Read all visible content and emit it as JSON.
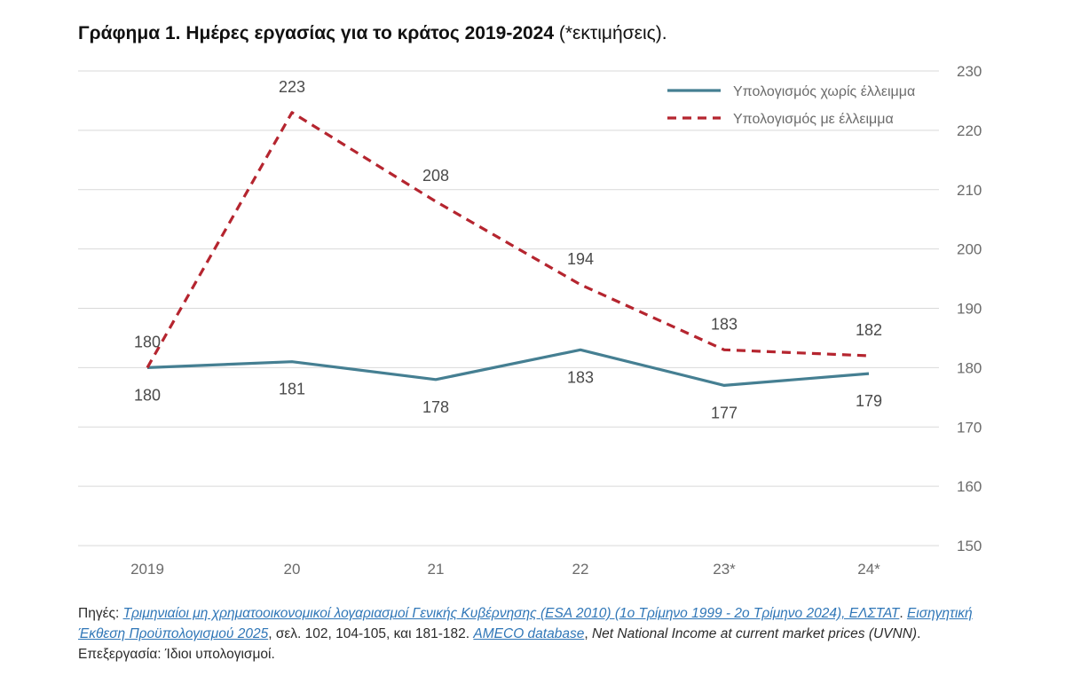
{
  "title": {
    "main": "Γράφημα 1. Ημέρες εργασίας για το κράτος 2019-2024",
    "suffix": " (*εκτιμήσεις)."
  },
  "colors": {
    "no_deficit": "#457f92",
    "with_deficit": "#b5252f",
    "grid": "#d9d9d9",
    "axis_text": "#6b6b6b",
    "link": "#2f76b7"
  },
  "chart_data": {
    "type": "line",
    "categories": [
      "2019",
      "20",
      "21",
      "22",
      "23*",
      "24*"
    ],
    "series": [
      {
        "name": "Υπολογισμός χωρίς έλλειμμα",
        "values": [
          180,
          181,
          178,
          183,
          177,
          179
        ],
        "style": "solid",
        "color": "#457f92",
        "data_labels": [
          "180",
          "181",
          "178",
          "183",
          "177",
          "179"
        ]
      },
      {
        "name": "Υπολογισμός με έλλειμμα",
        "values": [
          180,
          223,
          208,
          194,
          183,
          182
        ],
        "style": "dashed",
        "color": "#b5252f",
        "data_labels": [
          "180",
          "223",
          "208",
          "194",
          "183",
          "182"
        ]
      }
    ],
    "y_ticks": [
      "150",
      "160",
      "170",
      "180",
      "190",
      "200",
      "210",
      "220",
      "230"
    ],
    "ylim": [
      150,
      230
    ],
    "y_axis_side": "right",
    "grid": true,
    "legend_position": "top-right"
  },
  "source": {
    "label": "Πηγές: ",
    "link1": "Τριμηνιαίοι μη χρηματοοικονομικοί λογαριασμοί Γενικής Κυβέρνησης (ESA 2010) (1ο Τρίμηνο 1999 - 2ο Τρίμηνο 2024), ΕΛΣΤΑΤ",
    "sep1": ". ",
    "link2": "Εισηγητική Έκθεση Προϋπολογισμού 2025",
    "text2": ", σελ.  102, 104-105, και 181-182. ",
    "link3": "AMECO database",
    "text3a": ", ",
    "text3b": "Net National Income at current market prices (UVNN)",
    "text4": ". Επεξεργασία: Ίδιοι υπολογισμοί."
  }
}
